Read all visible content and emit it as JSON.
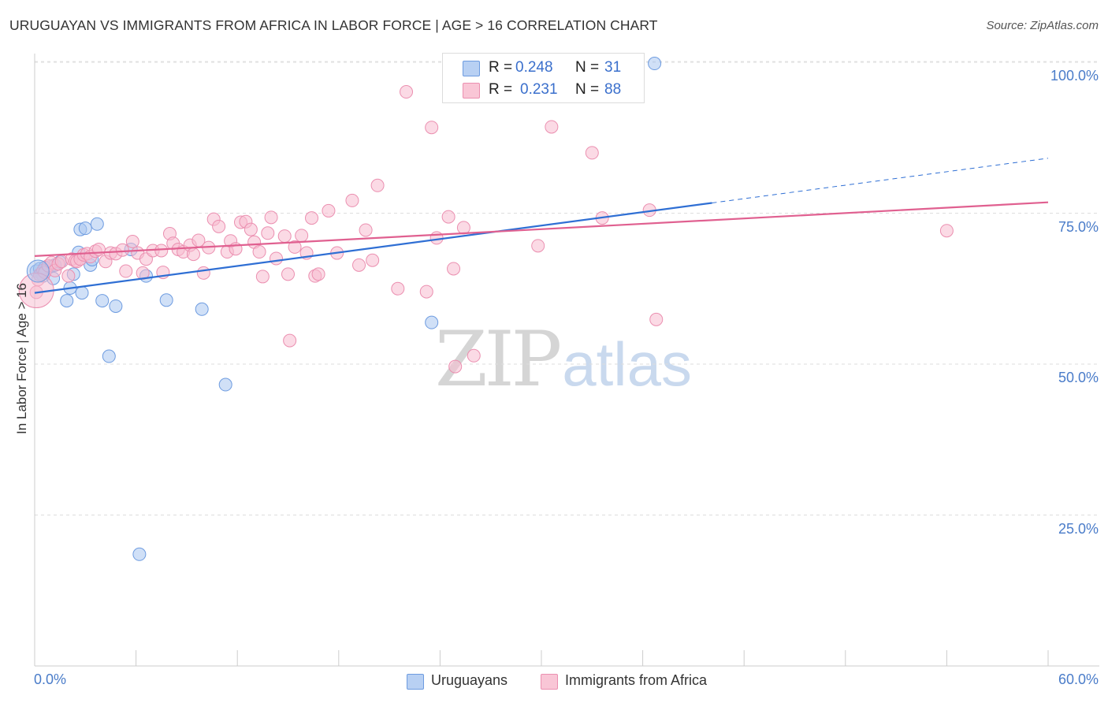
{
  "header": {
    "title": "URUGUAYAN VS IMMIGRANTS FROM AFRICA IN LABOR FORCE | AGE > 16 CORRELATION CHART",
    "source": "Source: ZipAtlas.com"
  },
  "watermark": {
    "zip": "ZIP",
    "atlas": "atlas"
  },
  "stats": [
    {
      "r_label": "R =",
      "r_value": "0.248",
      "n_label": "N =",
      "n_value": "31"
    },
    {
      "r_label": "R =",
      "r_value": "0.231",
      "n_label": "N =",
      "n_value": "88"
    }
  ],
  "legend": [
    {
      "label": "Uruguayans"
    },
    {
      "label": "Immigrants from Africa"
    }
  ],
  "chart_data": {
    "type": "scatter",
    "title": "URUGUAYAN VS IMMIGRANTS FROM AFRICA IN LABOR FORCE | AGE > 16 CORRELATION CHART",
    "xlabel": "",
    "ylabel": "In Labor Force | Age > 16",
    "xlim": [
      0,
      60
    ],
    "ylim": [
      0,
      103
    ],
    "x_tick_labels": [
      "0.0%",
      "60.0%"
    ],
    "y_ticks": [
      25,
      50,
      75,
      100
    ],
    "y_tick_labels": [
      "25.0%",
      "50.0%",
      "75.0%",
      "100.0%"
    ],
    "grid": true,
    "legend_position": "bottom-center",
    "colors": {
      "Uruguayans": {
        "fill": "#a9c6f0",
        "stroke": "#6d9be0",
        "line": "#2f6fd4"
      },
      "Immigrants from Africa": {
        "fill": "#f8bcd0",
        "stroke": "#eb8fb0",
        "line": "#e06090"
      }
    },
    "series": [
      {
        "name": "Uruguayans",
        "r": 0.248,
        "n": 31,
        "trend": {
          "x0": 0,
          "y0": 61.8,
          "x1": 40.1,
          "y1": 76.7,
          "x_dash_end": 60,
          "y_dash_end": 84.1
        },
        "points": [
          [
            0.1,
            65.4
          ],
          [
            0.3,
            65.8
          ],
          [
            0.4,
            65.0
          ],
          [
            0.5,
            64.6
          ],
          [
            0.7,
            65.7
          ],
          [
            0.9,
            66.1
          ],
          [
            1.1,
            64.2
          ],
          [
            1.2,
            66.4
          ],
          [
            1.5,
            66.9
          ],
          [
            1.9,
            60.5
          ],
          [
            2.1,
            62.6
          ],
          [
            2.3,
            64.9
          ],
          [
            2.6,
            68.5
          ],
          [
            2.7,
            72.3
          ],
          [
            2.8,
            61.8
          ],
          [
            3.0,
            72.5
          ],
          [
            3.3,
            66.4
          ],
          [
            3.4,
            67.3
          ],
          [
            3.7,
            73.2
          ],
          [
            4.0,
            60.5
          ],
          [
            4.4,
            51.3
          ],
          [
            4.8,
            59.6
          ],
          [
            5.7,
            69.0
          ],
          [
            6.2,
            18.5
          ],
          [
            6.6,
            64.6
          ],
          [
            7.8,
            60.6
          ],
          [
            9.9,
            59.1
          ],
          [
            11.3,
            46.6
          ],
          [
            23.5,
            56.9
          ],
          [
            36.7,
            99.8
          ],
          [
            0.6,
            66.0
          ]
        ]
      },
      {
        "name": "Immigrants from Africa",
        "r": 0.231,
        "n": 88,
        "trend": {
          "x0": 0,
          "y0": 67.9,
          "x1": 60,
          "y1": 76.8
        },
        "points": [
          [
            0.1,
            61.9
          ],
          [
            0.2,
            64.0
          ],
          [
            0.3,
            64.8
          ],
          [
            0.5,
            65.5
          ],
          [
            0.6,
            65.2
          ],
          [
            0.8,
            66.3
          ],
          [
            1.0,
            66.8
          ],
          [
            1.2,
            65.5
          ],
          [
            1.4,
            66.6
          ],
          [
            1.6,
            67.0
          ],
          [
            2.0,
            64.6
          ],
          [
            2.2,
            67.4
          ],
          [
            2.4,
            67.1
          ],
          [
            2.5,
            67.0
          ],
          [
            2.7,
            67.4
          ],
          [
            2.9,
            68.1
          ],
          [
            3.1,
            68.3
          ],
          [
            3.3,
            67.8
          ],
          [
            3.6,
            68.7
          ],
          [
            3.8,
            69.0
          ],
          [
            4.2,
            67.0
          ],
          [
            4.5,
            68.4
          ],
          [
            4.8,
            68.3
          ],
          [
            5.2,
            68.9
          ],
          [
            5.4,
            65.4
          ],
          [
            5.8,
            70.3
          ],
          [
            6.1,
            68.4
          ],
          [
            6.4,
            65.1
          ],
          [
            6.6,
            67.4
          ],
          [
            7.0,
            68.8
          ],
          [
            7.5,
            68.8
          ],
          [
            7.6,
            65.2
          ],
          [
            8.0,
            71.6
          ],
          [
            8.2,
            70.0
          ],
          [
            8.5,
            69.0
          ],
          [
            8.8,
            68.6
          ],
          [
            9.2,
            69.7
          ],
          [
            9.4,
            68.2
          ],
          [
            9.7,
            70.5
          ],
          [
            10.0,
            65.1
          ],
          [
            10.3,
            69.3
          ],
          [
            10.6,
            74.0
          ],
          [
            10.9,
            72.8
          ],
          [
            11.4,
            68.6
          ],
          [
            11.6,
            70.4
          ],
          [
            11.9,
            69.1
          ],
          [
            12.2,
            73.5
          ],
          [
            12.5,
            73.6
          ],
          [
            12.8,
            72.3
          ],
          [
            13.0,
            70.2
          ],
          [
            13.3,
            68.6
          ],
          [
            13.5,
            64.5
          ],
          [
            13.8,
            71.7
          ],
          [
            14.0,
            74.3
          ],
          [
            14.3,
            67.5
          ],
          [
            14.8,
            71.2
          ],
          [
            15.0,
            64.9
          ],
          [
            15.4,
            69.4
          ],
          [
            15.8,
            71.3
          ],
          [
            16.1,
            68.4
          ],
          [
            16.4,
            74.2
          ],
          [
            16.6,
            64.6
          ],
          [
            16.8,
            64.9
          ],
          [
            17.4,
            75.4
          ],
          [
            17.9,
            68.4
          ],
          [
            18.8,
            77.1
          ],
          [
            19.2,
            66.4
          ],
          [
            19.6,
            72.2
          ],
          [
            20.0,
            67.2
          ],
          [
            20.3,
            79.6
          ],
          [
            21.5,
            62.5
          ],
          [
            22.0,
            95.1
          ],
          [
            23.2,
            62.0
          ],
          [
            23.5,
            89.2
          ],
          [
            23.8,
            70.9
          ],
          [
            24.5,
            74.4
          ],
          [
            24.8,
            65.8
          ],
          [
            24.9,
            49.6
          ],
          [
            25.4,
            72.6
          ],
          [
            26.0,
            51.4
          ],
          [
            29.8,
            69.6
          ],
          [
            30.6,
            89.3
          ],
          [
            33.0,
            85.0
          ],
          [
            33.6,
            74.2
          ],
          [
            36.4,
            75.5
          ],
          [
            36.8,
            57.4
          ],
          [
            54.0,
            72.1
          ],
          [
            15.1,
            53.9
          ]
        ]
      }
    ]
  }
}
